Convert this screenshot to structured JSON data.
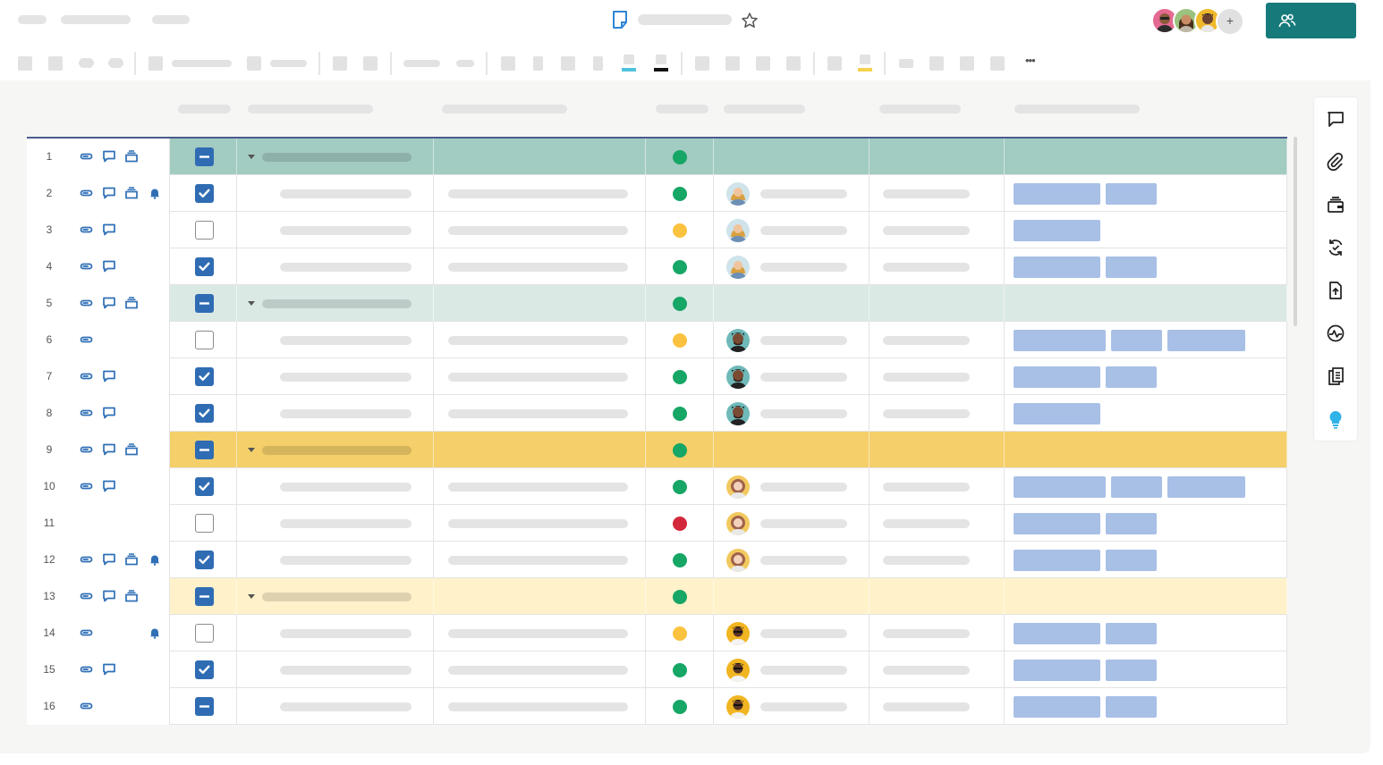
{
  "topbar": {
    "share_icon": "share-people-icon",
    "add_collaborator_label": "+",
    "sheet_icon": "sheet-icon",
    "star_icon": "star-icon"
  },
  "toolbar": {
    "more_label": "•••"
  },
  "colors": {
    "accent": "#167a7b",
    "checkbox": "#2f6cb3",
    "status_green": "#16a665",
    "status_yellow": "#fbc23f",
    "status_red": "#d3283c",
    "tag_blue": "#a8bfe6",
    "group_teal": "#a2cbc1",
    "group_teal_light": "#dbe9e5",
    "group_gold": "#f4cf6a",
    "group_gold_light": "#fff1c9"
  },
  "rows": [
    {
      "num": "1",
      "type": "group",
      "color": "#a2cbc1",
      "check": "partial",
      "status": "green",
      "icons": [
        "attach",
        "comment",
        "proof"
      ]
    },
    {
      "num": "2",
      "type": "item",
      "check": "checked",
      "status": "green",
      "avatar": "woman-blonde",
      "tags": 2,
      "icons": [
        "attach",
        "comment",
        "proof",
        "bell"
      ]
    },
    {
      "num": "3",
      "type": "item",
      "check": "empty",
      "status": "yellow",
      "avatar": "woman-blonde",
      "tags": 1,
      "icons": [
        "attach",
        "comment"
      ]
    },
    {
      "num": "4",
      "type": "item",
      "check": "checked",
      "status": "green",
      "avatar": "woman-blonde",
      "tags": 2,
      "icons": [
        "attach",
        "comment"
      ]
    },
    {
      "num": "5",
      "type": "group",
      "color": "#dbe9e5",
      "check": "partial",
      "status": "green",
      "icons": [
        "attach",
        "comment",
        "proof"
      ]
    },
    {
      "num": "6",
      "type": "item",
      "check": "empty",
      "status": "yellow",
      "avatar": "man-beard",
      "tags": 3,
      "icons": [
        "attach"
      ]
    },
    {
      "num": "7",
      "type": "item",
      "check": "checked",
      "status": "green",
      "avatar": "man-beard",
      "tags": 2,
      "icons": [
        "attach",
        "comment"
      ]
    },
    {
      "num": "8",
      "type": "item",
      "check": "checked",
      "status": "green",
      "avatar": "man-beard",
      "tags": 1,
      "icons": [
        "attach",
        "comment"
      ]
    },
    {
      "num": "9",
      "type": "group",
      "color": "#f4cf6a",
      "check": "partial",
      "status": "green",
      "icons": [
        "attach",
        "comment",
        "proof"
      ]
    },
    {
      "num": "10",
      "type": "item",
      "check": "checked",
      "status": "green",
      "avatar": "woman-curly",
      "tags": 3,
      "icons": [
        "attach",
        "comment"
      ]
    },
    {
      "num": "11",
      "type": "item",
      "check": "empty",
      "status": "red",
      "avatar": "woman-curly",
      "tags": 2,
      "icons": []
    },
    {
      "num": "12",
      "type": "item",
      "check": "checked",
      "status": "green",
      "avatar": "woman-curly",
      "tags": 2,
      "icons": [
        "attach",
        "comment",
        "proof",
        "bell"
      ]
    },
    {
      "num": "13",
      "type": "group",
      "color": "#fff1c9",
      "check": "partial",
      "status": "green",
      "icons": [
        "attach",
        "comment",
        "proof"
      ]
    },
    {
      "num": "14",
      "type": "item",
      "check": "empty",
      "status": "yellow",
      "avatar": "man-glasses",
      "tags": 2,
      "icons": [
        "attach",
        "bell"
      ]
    },
    {
      "num": "15",
      "type": "item",
      "check": "checked",
      "status": "green",
      "avatar": "man-glasses",
      "tags": 2,
      "icons": [
        "attach",
        "comment"
      ]
    },
    {
      "num": "16",
      "type": "item",
      "check": "partial",
      "status": "green",
      "avatar": "man-glasses",
      "tags": 2,
      "icons": [
        "attach"
      ]
    }
  ],
  "side_panel": {
    "icons": [
      "comment-icon",
      "attachment-icon",
      "proofing-icon",
      "update-request-icon",
      "publish-icon",
      "activity-icon",
      "summary-icon",
      "lightbulb-icon"
    ]
  }
}
